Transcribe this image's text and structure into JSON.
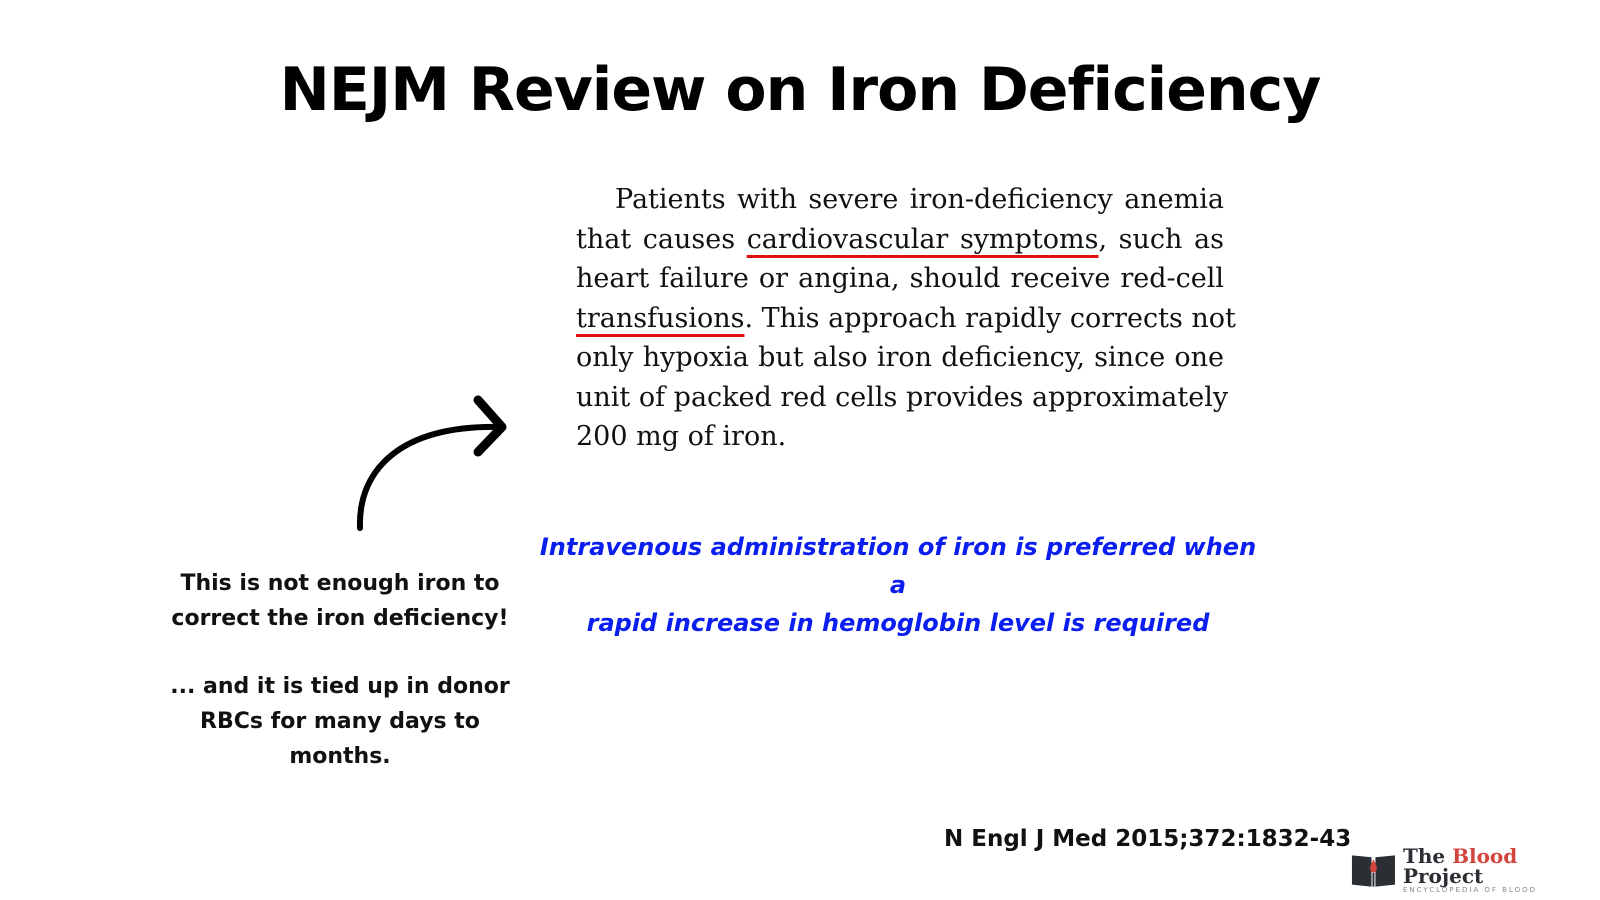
{
  "title": "NEJM Review on Iron Deficiency",
  "excerpt": {
    "lines": [
      {
        "a": "Patients with severe iron-deficiency anemia"
      },
      {
        "a": "that causes ",
        "u": "cardiovascular symptoms",
        "b": ", such as"
      },
      {
        "a": "heart failure or angina, should receive red-cell"
      },
      {
        "u": "transfusions",
        "b": ". This approach rapidly corrects not"
      },
      {
        "a": "only hypoxia but also iron deficiency, since one"
      },
      {
        "a": "unit of packed red cells provides approximately"
      },
      {
        "a": "200 mg of iron."
      }
    ],
    "underline_color": "#e01010"
  },
  "note": {
    "line1": "Intravenous administration of iron is preferred when a",
    "line2": "rapid increase in hemoglobin level is required",
    "color": "#0a1ef0"
  },
  "side": {
    "p1": "This is not enough iron to correct the iron deficiency!",
    "p2": "... and it is tied up in donor RBCs for many days to months."
  },
  "citation": "N Engl J Med 2015;372:1832-43",
  "logo": {
    "the": "The ",
    "blood": "Blood",
    "project": " Project",
    "tagline": "ENCYCLOPEDIA OF BLOOD",
    "icon": "book-blood-drop-icon"
  }
}
